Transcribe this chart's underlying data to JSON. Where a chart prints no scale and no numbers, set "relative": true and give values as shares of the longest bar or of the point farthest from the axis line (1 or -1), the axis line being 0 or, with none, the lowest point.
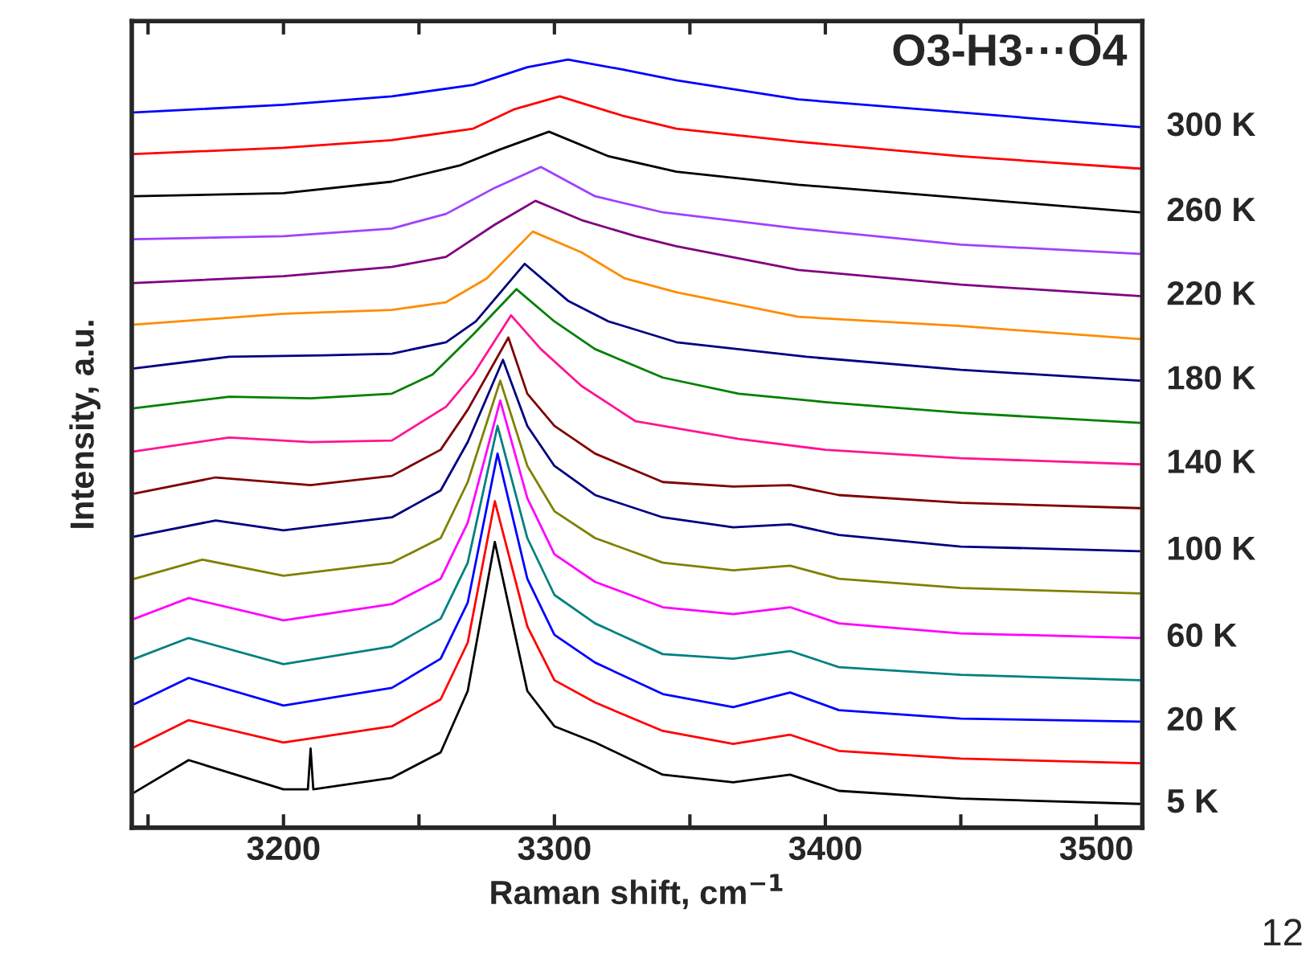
{
  "chart_data": {
    "type": "line",
    "title": "O3-H3···O4",
    "xlabel": "Raman shift, cm$^{−1}$",
    "ylabel": "Intensity, a.u.",
    "relative": true,
    "xlim": [
      3144,
      3517
    ],
    "xticks": [
      {
        "value": 3150,
        "label": null
      },
      3200,
      {
        "value": 3250,
        "label": null
      },
      3300,
      {
        "value": 3350,
        "label": null
      },
      3400,
      {
        "value": 3450,
        "label": null
      },
      3500
    ],
    "grid": false,
    "legend": false,
    "marker": "none",
    "line_style": "solid",
    "series": [
      {
        "name": "300 K",
        "color": "#0000ff",
        "x": [
          3145,
          3200,
          3240,
          3270,
          3290,
          3305,
          3325,
          3345,
          3390,
          3450,
          3516
        ],
        "values": [
          0.931,
          0.941,
          0.952,
          0.967,
          0.99,
          1.0,
          0.987,
          0.973,
          0.948,
          0.931,
          0.912
        ]
      },
      {
        "color": "#ff0000",
        "x": [
          3145,
          3200,
          3240,
          3270,
          3285,
          3302,
          3325,
          3345,
          3390,
          3450,
          3516
        ],
        "values": [
          0.877,
          0.885,
          0.895,
          0.91,
          0.935,
          0.952,
          0.927,
          0.91,
          0.893,
          0.874,
          0.858
        ]
      },
      {
        "name": "260 K",
        "color": "#000000",
        "x": [
          3145,
          3200,
          3240,
          3265,
          3280,
          3298,
          3320,
          3345,
          3390,
          3450,
          3516
        ],
        "values": [
          0.822,
          0.826,
          0.841,
          0.862,
          0.883,
          0.906,
          0.874,
          0.854,
          0.837,
          0.82,
          0.801
        ]
      },
      {
        "color": "#a040ff",
        "x": [
          3145,
          3200,
          3240,
          3260,
          3278,
          3295,
          3315,
          3340,
          3390,
          3450,
          3516
        ],
        "values": [
          0.766,
          0.77,
          0.78,
          0.799,
          0.833,
          0.86,
          0.822,
          0.801,
          0.78,
          0.759,
          0.747
        ]
      },
      {
        "name": "220 K",
        "color": "#800080",
        "x": [
          3145,
          3200,
          3240,
          3260,
          3278,
          3293,
          3310,
          3330,
          3345,
          3390,
          3450,
          3516
        ],
        "values": [
          0.709,
          0.718,
          0.73,
          0.743,
          0.785,
          0.816,
          0.791,
          0.77,
          0.757,
          0.726,
          0.707,
          0.692
        ]
      },
      {
        "color": "#ff8c00",
        "x": [
          3145,
          3200,
          3240,
          3260,
          3275,
          3292,
          3310,
          3326,
          3345,
          3390,
          3450,
          3516
        ],
        "values": [
          0.655,
          0.669,
          0.674,
          0.684,
          0.715,
          0.776,
          0.749,
          0.715,
          0.697,
          0.665,
          0.653,
          0.636
        ]
      },
      {
        "name": "180 K",
        "color": "#000080",
        "x": [
          3145,
          3180,
          3215,
          3240,
          3260,
          3271,
          3289,
          3305,
          3320,
          3345,
          3393,
          3450,
          3516
        ],
        "values": [
          0.598,
          0.613,
          0.615,
          0.617,
          0.632,
          0.659,
          0.734,
          0.686,
          0.659,
          0.632,
          0.613,
          0.596,
          0.582
        ]
      },
      {
        "color": "#008000",
        "x": [
          3145,
          3180,
          3210,
          3240,
          3255,
          3270,
          3286,
          3300,
          3315,
          3340,
          3368,
          3400,
          3450,
          3516
        ],
        "values": [
          0.546,
          0.561,
          0.559,
          0.565,
          0.59,
          0.642,
          0.701,
          0.659,
          0.623,
          0.586,
          0.565,
          0.554,
          0.54,
          0.527
        ]
      },
      {
        "name": "140 K",
        "color": "#ff1493",
        "x": [
          3145,
          3180,
          3210,
          3240,
          3260,
          3270,
          3284,
          3295,
          3310,
          3330,
          3368,
          3400,
          3450,
          3516
        ],
        "values": [
          0.49,
          0.508,
          0.502,
          0.504,
          0.548,
          0.59,
          0.667,
          0.623,
          0.575,
          0.529,
          0.506,
          0.492,
          0.481,
          0.473
        ]
      },
      {
        "color": "#800000",
        "x": [
          3145,
          3175,
          3210,
          3240,
          3258,
          3268,
          3283,
          3290,
          3300,
          3315,
          3340,
          3366,
          3387,
          3405,
          3450,
          3516
        ],
        "values": [
          0.435,
          0.456,
          0.446,
          0.458,
          0.492,
          0.544,
          0.638,
          0.565,
          0.523,
          0.487,
          0.45,
          0.444,
          0.446,
          0.433,
          0.423,
          0.416
        ]
      },
      {
        "name": "100 K",
        "color": "#000080",
        "x": [
          3145,
          3175,
          3200,
          3240,
          3258,
          3268,
          3281,
          3290,
          3300,
          3315,
          3340,
          3366,
          3387,
          3405,
          3450,
          3516
        ],
        "values": [
          0.379,
          0.4,
          0.387,
          0.404,
          0.439,
          0.502,
          0.609,
          0.523,
          0.471,
          0.433,
          0.404,
          0.391,
          0.395,
          0.381,
          0.366,
          0.36
        ]
      },
      {
        "color": "#808000",
        "x": [
          3145,
          3170,
          3200,
          3240,
          3258,
          3268,
          3280,
          3290,
          3300,
          3315,
          3340,
          3366,
          3387,
          3405,
          3450,
          3516
        ],
        "values": [
          0.324,
          0.349,
          0.328,
          0.345,
          0.377,
          0.45,
          0.582,
          0.471,
          0.412,
          0.377,
          0.345,
          0.335,
          0.341,
          0.324,
          0.312,
          0.305
        ]
      },
      {
        "name": "60 K",
        "color": "#ff00ff",
        "x": [
          3145,
          3165,
          3200,
          3240,
          3258,
          3268,
          3280,
          3290,
          3300,
          3315,
          3340,
          3366,
          3387,
          3405,
          3450,
          3516
        ],
        "values": [
          0.272,
          0.299,
          0.27,
          0.291,
          0.324,
          0.397,
          0.556,
          0.429,
          0.356,
          0.32,
          0.287,
          0.278,
          0.287,
          0.266,
          0.253,
          0.247
        ]
      },
      {
        "color": "#008080",
        "x": [
          3145,
          3165,
          3200,
          3240,
          3258,
          3268,
          3279,
          3290,
          3300,
          3315,
          3340,
          3366,
          3387,
          3405,
          3450,
          3516
        ],
        "values": [
          0.22,
          0.247,
          0.213,
          0.236,
          0.272,
          0.345,
          0.523,
          0.377,
          0.303,
          0.266,
          0.226,
          0.22,
          0.23,
          0.209,
          0.199,
          0.192
        ]
      },
      {
        "name": "20 K",
        "color": "#0000ff",
        "x": [
          3145,
          3165,
          3200,
          3240,
          3258,
          3268,
          3279,
          3290,
          3300,
          3315,
          3340,
          3366,
          3387,
          3405,
          3450,
          3516
        ],
        "values": [
          0.161,
          0.195,
          0.159,
          0.182,
          0.22,
          0.293,
          0.487,
          0.324,
          0.251,
          0.215,
          0.174,
          0.157,
          0.176,
          0.153,
          0.142,
          0.138
        ]
      },
      {
        "color": "#ff0000",
        "x": [
          3145,
          3165,
          3200,
          3240,
          3258,
          3268,
          3278,
          3290,
          3300,
          3315,
          3340,
          3366,
          3387,
          3405,
          3450,
          3516
        ],
        "values": [
          0.105,
          0.14,
          0.111,
          0.132,
          0.167,
          0.241,
          0.425,
          0.262,
          0.192,
          0.163,
          0.126,
          0.109,
          0.121,
          0.1,
          0.09,
          0.084
        ]
      },
      {
        "name": "5 K",
        "color": "#000000",
        "x": [
          3145,
          3165,
          3200,
          3209,
          3210,
          3211,
          3240,
          3258,
          3268,
          3278,
          3290,
          3300,
          3315,
          3340,
          3366,
          3387,
          3405,
          3450,
          3516
        ],
        "values": [
          0.046,
          0.088,
          0.05,
          0.05,
          0.103,
          0.05,
          0.065,
          0.098,
          0.178,
          0.372,
          0.178,
          0.132,
          0.111,
          0.069,
          0.059,
          0.069,
          0.048,
          0.038,
          0.031
        ]
      }
    ],
    "annotations": [
      "12"
    ]
  }
}
